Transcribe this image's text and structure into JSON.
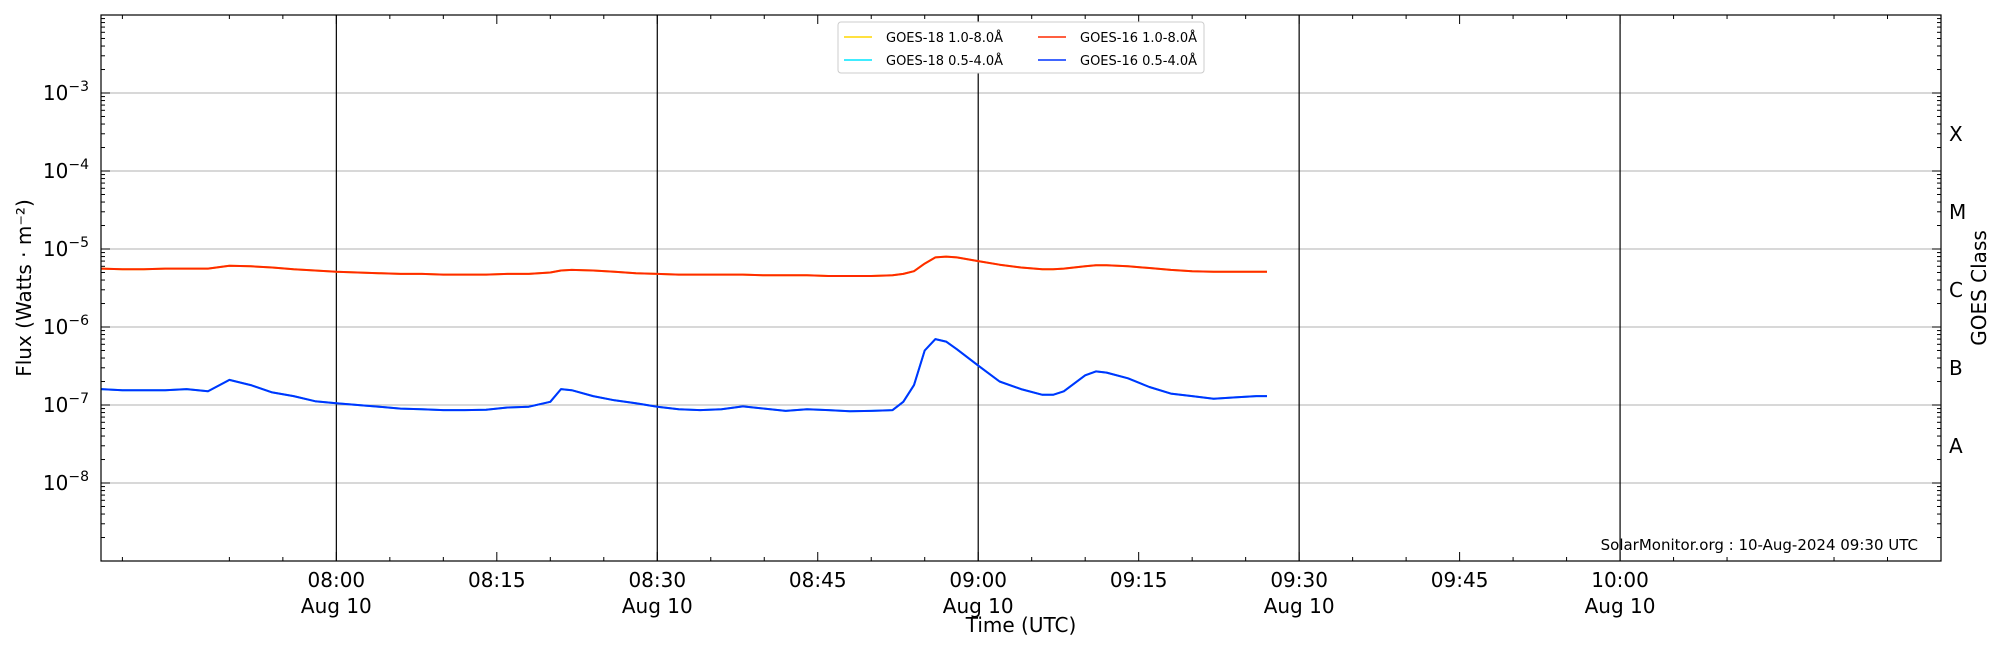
{
  "chart_data": {
    "type": "line",
    "title": "",
    "xlabel": "Time (UTC)",
    "ylabel": "Flux (Watts · m⁻²)",
    "right_axis_label": "GOES Class",
    "y_scale": "log",
    "ylim": [
      1e-09,
      0.01
    ],
    "xlim": [
      "07:38",
      "10:30"
    ],
    "grid": "horizontal at decades",
    "legend_position": "top-center",
    "credit": "SolarMonitor.org : 10-Aug-2024 09:30 UTC",
    "y_ticks": [
      {
        "value": 1e-08,
        "exp": "−8"
      },
      {
        "value": 1e-07,
        "exp": "−7"
      },
      {
        "value": 1e-06,
        "exp": "−6"
      },
      {
        "value": 1e-05,
        "exp": "−5"
      },
      {
        "value": 0.0001,
        "exp": "−4"
      },
      {
        "value": 0.001,
        "exp": "−3"
      }
    ],
    "y_tick_base": "10",
    "x_ticks": [
      {
        "time": "08:00",
        "date": "Aug 10"
      },
      {
        "time": "08:15",
        "date": ""
      },
      {
        "time": "08:30",
        "date": "Aug 10"
      },
      {
        "time": "08:45",
        "date": ""
      },
      {
        "time": "09:00",
        "date": "Aug 10"
      },
      {
        "time": "09:15",
        "date": ""
      },
      {
        "time": "09:30",
        "date": "Aug 10"
      },
      {
        "time": "09:45",
        "date": ""
      },
      {
        "time": "10:00",
        "date": "Aug 10"
      }
    ],
    "vertical_lines": [
      "08:00",
      "08:30",
      "09:00",
      "09:30",
      "10:00"
    ],
    "class_labels": [
      {
        "label": "A",
        "value": 3e-08
      },
      {
        "label": "B",
        "value": 3e-07
      },
      {
        "label": "C",
        "value": 3e-06
      },
      {
        "label": "M",
        "value": 3e-05
      },
      {
        "label": "X",
        "value": 0.0003
      }
    ],
    "x": [
      "07:38",
      "07:40",
      "07:42",
      "07:44",
      "07:46",
      "07:48",
      "07:50",
      "07:52",
      "07:54",
      "07:56",
      "07:58",
      "08:00",
      "08:02",
      "08:04",
      "08:06",
      "08:08",
      "08:10",
      "08:12",
      "08:14",
      "08:16",
      "08:18",
      "08:20",
      "08:21",
      "08:22",
      "08:24",
      "08:26",
      "08:28",
      "08:30",
      "08:32",
      "08:34",
      "08:36",
      "08:38",
      "08:40",
      "08:42",
      "08:44",
      "08:46",
      "08:48",
      "08:50",
      "08:52",
      "08:53",
      "08:54",
      "08:55",
      "08:56",
      "08:57",
      "08:58",
      "09:00",
      "09:02",
      "09:04",
      "09:06",
      "09:07",
      "09:08",
      "09:10",
      "09:11",
      "09:12",
      "09:14",
      "09:16",
      "09:18",
      "09:20",
      "09:22",
      "09:24",
      "09:26",
      "09:27"
    ],
    "series": [
      {
        "name": "GOES-18 1.0-8.0Å",
        "color": "#ffd700",
        "values": [
          5.6e-06,
          5.5e-06,
          5.5e-06,
          5.6e-06,
          5.6e-06,
          5.6e-06,
          6.1e-06,
          6e-06,
          5.8e-06,
          5.5e-06,
          5.3e-06,
          5.1e-06,
          5e-06,
          4.9e-06,
          4.8e-06,
          4.8e-06,
          4.7e-06,
          4.7e-06,
          4.7e-06,
          4.8e-06,
          4.8e-06,
          5e-06,
          5.3e-06,
          5.4e-06,
          5.3e-06,
          5.1e-06,
          4.9e-06,
          4.8e-06,
          4.7e-06,
          4.7e-06,
          4.7e-06,
          4.7e-06,
          4.6e-06,
          4.6e-06,
          4.6e-06,
          4.5e-06,
          4.5e-06,
          4.5e-06,
          4.6e-06,
          4.8e-06,
          5.2e-06,
          6.5e-06,
          7.8e-06,
          8e-06,
          7.8e-06,
          7e-06,
          6.3e-06,
          5.8e-06,
          5.5e-06,
          5.5e-06,
          5.6e-06,
          6e-06,
          6.2e-06,
          6.2e-06,
          6e-06,
          5.7e-06,
          5.4e-06,
          5.2e-06,
          5.1e-06,
          5.1e-06,
          5.1e-06,
          5.1e-06
        ]
      },
      {
        "name": "GOES-16 1.0-8.0Å",
        "color": "#ff2a00",
        "values": [
          5.6e-06,
          5.5e-06,
          5.5e-06,
          5.6e-06,
          5.6e-06,
          5.6e-06,
          6.1e-06,
          6e-06,
          5.8e-06,
          5.5e-06,
          5.3e-06,
          5.1e-06,
          5e-06,
          4.9e-06,
          4.8e-06,
          4.8e-06,
          4.7e-06,
          4.7e-06,
          4.7e-06,
          4.8e-06,
          4.8e-06,
          5e-06,
          5.3e-06,
          5.4e-06,
          5.3e-06,
          5.1e-06,
          4.9e-06,
          4.8e-06,
          4.7e-06,
          4.7e-06,
          4.7e-06,
          4.7e-06,
          4.6e-06,
          4.6e-06,
          4.6e-06,
          4.5e-06,
          4.5e-06,
          4.5e-06,
          4.6e-06,
          4.8e-06,
          5.2e-06,
          6.5e-06,
          7.8e-06,
          8e-06,
          7.8e-06,
          7e-06,
          6.3e-06,
          5.8e-06,
          5.5e-06,
          5.5e-06,
          5.6e-06,
          6e-06,
          6.2e-06,
          6.2e-06,
          6e-06,
          5.7e-06,
          5.4e-06,
          5.2e-06,
          5.1e-06,
          5.1e-06,
          5.1e-06,
          5.1e-06
        ]
      },
      {
        "name": "GOES-18 0.5-4.0Å",
        "color": "#00e5ff",
        "values": [
          1.6e-07,
          1.55e-07,
          1.55e-07,
          1.55e-07,
          1.6e-07,
          1.5e-07,
          2.1e-07,
          1.8e-07,
          1.45e-07,
          1.3e-07,
          1.12e-07,
          1.05e-07,
          1e-07,
          9.5e-08,
          9e-08,
          8.8e-08,
          8.6e-08,
          8.6e-08,
          8.7e-08,
          9.3e-08,
          9.5e-08,
          1.1e-07,
          1.6e-07,
          1.55e-07,
          1.3e-07,
          1.15e-07,
          1.05e-07,
          9.5e-08,
          8.8e-08,
          8.6e-08,
          8.8e-08,
          9.6e-08,
          9e-08,
          8.4e-08,
          8.8e-08,
          8.6e-08,
          8.3e-08,
          8.4e-08,
          8.6e-08,
          1.1e-07,
          1.8e-07,
          5e-07,
          7e-07,
          6.5e-07,
          5.2e-07,
          3.2e-07,
          2e-07,
          1.6e-07,
          1.35e-07,
          1.35e-07,
          1.5e-07,
          2.4e-07,
          2.7e-07,
          2.6e-07,
          2.2e-07,
          1.7e-07,
          1.4e-07,
          1.3e-07,
          1.2e-07,
          1.25e-07,
          1.3e-07,
          1.3e-07
        ]
      },
      {
        "name": "GOES-16 0.5-4.0Å",
        "color": "#0033ff",
        "values": [
          1.6e-07,
          1.55e-07,
          1.55e-07,
          1.55e-07,
          1.6e-07,
          1.5e-07,
          2.1e-07,
          1.8e-07,
          1.45e-07,
          1.3e-07,
          1.12e-07,
          1.05e-07,
          1e-07,
          9.5e-08,
          9e-08,
          8.8e-08,
          8.6e-08,
          8.6e-08,
          8.7e-08,
          9.3e-08,
          9.5e-08,
          1.1e-07,
          1.6e-07,
          1.55e-07,
          1.3e-07,
          1.15e-07,
          1.05e-07,
          9.5e-08,
          8.8e-08,
          8.6e-08,
          8.8e-08,
          9.6e-08,
          9e-08,
          8.4e-08,
          8.8e-08,
          8.6e-08,
          8.3e-08,
          8.4e-08,
          8.6e-08,
          1.1e-07,
          1.8e-07,
          5e-07,
          7e-07,
          6.5e-07,
          5.2e-07,
          3.2e-07,
          2e-07,
          1.6e-07,
          1.35e-07,
          1.35e-07,
          1.5e-07,
          2.4e-07,
          2.7e-07,
          2.6e-07,
          2.2e-07,
          1.7e-07,
          1.4e-07,
          1.3e-07,
          1.2e-07,
          1.25e-07,
          1.3e-07,
          1.3e-07
        ]
      }
    ],
    "legend_order": [
      0,
      2,
      1,
      3
    ]
  }
}
